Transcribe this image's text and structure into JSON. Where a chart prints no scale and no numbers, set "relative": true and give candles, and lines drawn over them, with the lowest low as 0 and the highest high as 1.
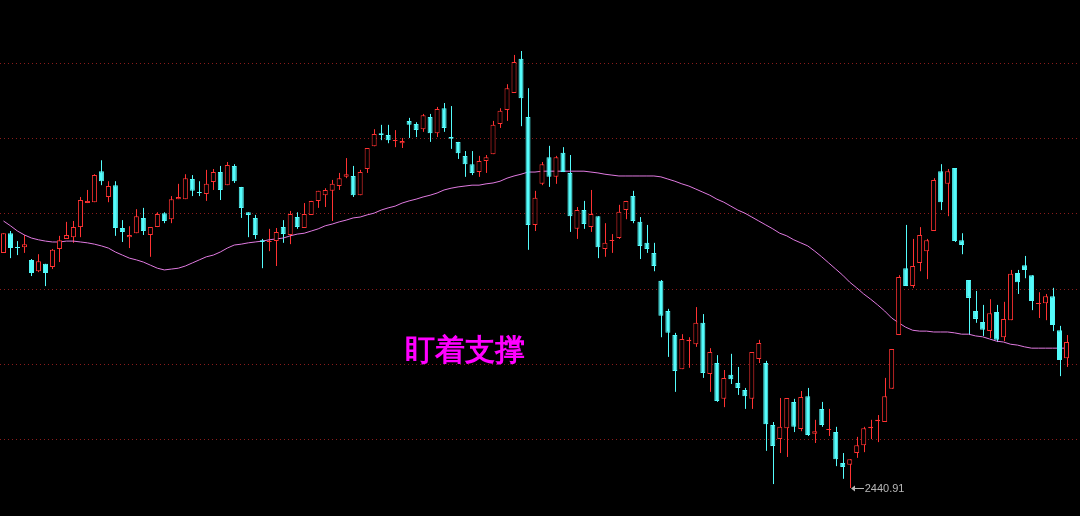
{
  "chart_data": {
    "type": "candlestick",
    "relative": true,
    "legend": false,
    "marker": "none",
    "ref_lines": [
      {
        "axis": "y",
        "value": 0.973,
        "color": "#8a1c1c",
        "line_style": "dotted"
      },
      {
        "axis": "y",
        "value": 0.801,
        "color": "#8a1c1c",
        "line_style": "dotted"
      },
      {
        "axis": "y",
        "value": 0.629,
        "color": "#8a1c1c",
        "line_style": "dotted"
      },
      {
        "axis": "y",
        "value": 0.455,
        "color": "#8a1c1c",
        "line_style": "dotted"
      },
      {
        "axis": "y",
        "value": 0.284,
        "color": "#8a1c1c",
        "line_style": "dotted"
      },
      {
        "axis": "y",
        "value": 0.112,
        "color": "#8a1c1c",
        "line_style": "dotted"
      }
    ],
    "annotations": [
      "盯着支撑",
      "2440.91"
    ],
    "categories": [
      null,
      null,
      null,
      null,
      null,
      null,
      null,
      null,
      null,
      null,
      null,
      null,
      null,
      null,
      null,
      null,
      null,
      null,
      null,
      null,
      null,
      null,
      null,
      null,
      null,
      null,
      null,
      null,
      null,
      null,
      null,
      null,
      null,
      null,
      null,
      null,
      null,
      null,
      null,
      null,
      null,
      null,
      null,
      null,
      null,
      null,
      null,
      null,
      null,
      null,
      null,
      null,
      null,
      null,
      null,
      null,
      null,
      null,
      null,
      null,
      null,
      null,
      null,
      null,
      null,
      null,
      null,
      null,
      null,
      null,
      null,
      null,
      null,
      null,
      null,
      null,
      null,
      null,
      null,
      null,
      null,
      null,
      null,
      null,
      null,
      null,
      null,
      null,
      null,
      null,
      null,
      null,
      null,
      null,
      null,
      null,
      null,
      null,
      null,
      null,
      null,
      null,
      null,
      null,
      null,
      null,
      null,
      null,
      null,
      null,
      null,
      null,
      null,
      null,
      null,
      null,
      null,
      null,
      null,
      null,
      null,
      null,
      null,
      null,
      null,
      null,
      null,
      null,
      null,
      null,
      null,
      null,
      null,
      null,
      null,
      null,
      null,
      null,
      null,
      null,
      null,
      null,
      null,
      null,
      null,
      null,
      null,
      null,
      null,
      null,
      null,
      null,
      null
    ],
    "series": [
      {
        "ohlc": [
          [
            0.538,
            0.583,
            0.538,
            0.583
          ],
          [
            0.583,
            0.588,
            0.526,
            0.549
          ],
          [
            0.551,
            0.565,
            0.533,
            0.549
          ],
          [
            0.551,
            0.579,
            0.538,
            0.558
          ],
          [
            0.522,
            0.524,
            0.485,
            0.492
          ],
          [
            0.496,
            0.535,
            0.494,
            0.519
          ],
          [
            0.513,
            0.513,
            0.462,
            0.492
          ],
          [
            0.506,
            0.547,
            0.501,
            0.545
          ],
          [
            0.547,
            0.577,
            0.517,
            0.567
          ],
          [
            0.57,
            0.609,
            0.57,
            0.579
          ],
          [
            0.574,
            0.611,
            0.561,
            0.597
          ],
          [
            0.597,
            0.666,
            0.574,
            0.659
          ],
          [
            0.652,
            0.682,
            0.652,
            0.657
          ],
          [
            0.654,
            0.718,
            0.654,
            0.716
          ],
          [
            0.725,
            0.75,
            0.693,
            0.702
          ],
          [
            0.666,
            0.702,
            0.654,
            0.691
          ],
          [
            0.693,
            0.702,
            0.577,
            0.595
          ],
          [
            0.595,
            0.613,
            0.563,
            0.586
          ],
          [
            0.574,
            0.599,
            0.549,
            0.579
          ],
          [
            0.583,
            0.638,
            0.583,
            0.622
          ],
          [
            0.618,
            0.641,
            0.579,
            0.588
          ],
          [
            0.579,
            0.597,
            0.529,
            0.597
          ],
          [
            0.597,
            0.631,
            0.597,
            0.627
          ],
          [
            0.629,
            0.631,
            0.606,
            0.611
          ],
          [
            0.615,
            0.668,
            0.606,
            0.661
          ],
          [
            0.661,
            0.696,
            0.661,
            0.666
          ],
          [
            0.661,
            0.718,
            0.661,
            0.709
          ],
          [
            0.707,
            0.716,
            0.668,
            0.68
          ],
          [
            0.677,
            0.702,
            0.668,
            0.675
          ],
          [
            0.673,
            0.728,
            0.657,
            0.696
          ],
          [
            0.7,
            0.73,
            0.682,
            0.723
          ],
          [
            0.723,
            0.737,
            0.659,
            0.682
          ],
          [
            0.693,
            0.746,
            0.693,
            0.739
          ],
          [
            0.737,
            0.741,
            0.698,
            0.702
          ],
          [
            0.689,
            0.689,
            0.618,
            0.641
          ],
          [
            0.631,
            0.631,
            0.574,
            0.625
          ],
          [
            0.618,
            0.625,
            0.57,
            0.579
          ],
          [
            0.567,
            0.57,
            0.503,
            0.563
          ],
          [
            0.563,
            0.593,
            0.542,
            0.565
          ],
          [
            0.565,
            0.595,
            0.508,
            0.586
          ],
          [
            0.597,
            0.613,
            0.561,
            0.581
          ],
          [
            0.579,
            0.634,
            0.558,
            0.627
          ],
          [
            0.62,
            0.631,
            0.593,
            0.597
          ],
          [
            0.595,
            0.652,
            0.595,
            0.627
          ],
          [
            0.625,
            0.657,
            0.625,
            0.657
          ],
          [
            0.657,
            0.68,
            0.641,
            0.68
          ],
          [
            0.67,
            0.686,
            0.643,
            0.682
          ],
          [
            0.68,
            0.705,
            0.611,
            0.696
          ],
          [
            0.691,
            0.721,
            0.682,
            0.709
          ],
          [
            0.712,
            0.755,
            0.709,
            0.718
          ],
          [
            0.714,
            0.737,
            0.666,
            0.67
          ],
          [
            0.67,
            0.728,
            0.67,
            0.723
          ],
          [
            0.73,
            0.778,
            0.721,
            0.778
          ],
          [
            0.782,
            0.821,
            0.782,
            0.81
          ],
          [
            0.812,
            0.831,
            0.796,
            0.808
          ],
          [
            0.808,
            0.831,
            0.789,
            0.796
          ],
          [
            0.794,
            0.819,
            0.78,
            0.796
          ],
          [
            0.789,
            0.801,
            0.778,
            0.794
          ],
          [
            0.84,
            0.847,
            0.801,
            0.831
          ],
          [
            0.833,
            0.837,
            0.803,
            0.819
          ],
          [
            0.821,
            0.856,
            0.815,
            0.853
          ],
          [
            0.849,
            0.856,
            0.792,
            0.812
          ],
          [
            0.812,
            0.872,
            0.803,
            0.867
          ],
          [
            0.869,
            0.881,
            0.815,
            0.824
          ],
          [
            0.803,
            0.874,
            0.776,
            0.799
          ],
          [
            0.792,
            0.792,
            0.753,
            0.766
          ],
          [
            0.76,
            0.771,
            0.712,
            0.741
          ],
          [
            0.741,
            0.771,
            0.716,
            0.721
          ],
          [
            0.723,
            0.76,
            0.712,
            0.748
          ],
          [
            0.748,
            0.762,
            0.721,
            0.757
          ],
          [
            0.764,
            0.84,
            0.764,
            0.831
          ],
          [
            0.833,
            0.869,
            0.824,
            0.863
          ],
          [
            0.865,
            0.924,
            0.84,
            0.915
          ],
          [
            0.904,
            0.991,
            0.904,
            0.975
          ],
          [
            0.982,
            1,
            0.828,
            0.892
          ],
          [
            0.849,
            0.915,
            0.545,
            0.602
          ],
          [
            0.602,
            0.68,
            0.588,
            0.664
          ],
          [
            0.696,
            0.746,
            0.693,
            0.741
          ],
          [
            0.757,
            0.783,
            0.689,
            0.712
          ],
          [
            0.712,
            0.76,
            0.696,
            0.757
          ],
          [
            0.767,
            0.78,
            0.723,
            0.723
          ],
          [
            0.721,
            0.762,
            0.586,
            0.622
          ],
          [
            0.593,
            0.643,
            0.57,
            0.636
          ],
          [
            0.636,
            0.657,
            0.593,
            0.604
          ],
          [
            0.597,
            0.682,
            0.586,
            0.627
          ],
          [
            0.622,
            0.622,
            0.526,
            0.551
          ],
          [
            0.547,
            0.606,
            0.529,
            0.561
          ],
          [
            0.565,
            0.581,
            0.538,
            0.567
          ],
          [
            0.572,
            0.648,
            0.57,
            0.632
          ],
          [
            0.636,
            0.657,
            0.615,
            0.657
          ],
          [
            0.668,
            0.68,
            0.606,
            0.611
          ],
          [
            0.609,
            0.62,
            0.524,
            0.554
          ],
          [
            0.561,
            0.602,
            0.538,
            0.547
          ],
          [
            0.538,
            0.561,
            0.496,
            0.508
          ],
          [
            0.474,
            0.476,
            0.345,
            0.394
          ],
          [
            0.405,
            0.41,
            0.3,
            0.355
          ],
          [
            0.35,
            0.355,
            0.22,
            0.268
          ],
          [
            0.272,
            0.352,
            0.272,
            0.341
          ],
          [
            0.336,
            0.345,
            0.275,
            0.339
          ],
          [
            0.329,
            0.414,
            0.323,
            0.378
          ],
          [
            0.378,
            0.398,
            0.252,
            0.263
          ],
          [
            0.261,
            0.32,
            0.22,
            0.311
          ],
          [
            0.286,
            0.304,
            0.197,
            0.199
          ],
          [
            0.204,
            0.27,
            0.185,
            0.252
          ],
          [
            0.259,
            0.307,
            0.238,
            0.249
          ],
          [
            0.24,
            0.277,
            0.213,
            0.229
          ],
          [
            0.224,
            0.229,
            0.181,
            0.21
          ],
          [
            0.204,
            0.311,
            0.181,
            0.311
          ],
          [
            0.295,
            0.339,
            0.286,
            0.332
          ],
          [
            0.286,
            0.291,
            0.085,
            0.146
          ],
          [
            0.144,
            0.151,
            0.009,
            0.096
          ],
          [
            0.112,
            0.206,
            0.08,
            0.14
          ],
          [
            0.137,
            0.206,
            0.071,
            0.206
          ],
          [
            0.197,
            0.204,
            0.128,
            0.14
          ],
          [
            0.135,
            0.222,
            0.13,
            0.208
          ],
          [
            0.21,
            0.229,
            0.119,
            0.121
          ],
          [
            0.124,
            0.156,
            0.103,
            0.13
          ],
          [
            0.181,
            0.197,
            0.14,
            0.144
          ],
          [
            0.133,
            0.181,
            0.119,
            0.135
          ],
          [
            0.128,
            0.14,
            0.05,
            0.066
          ],
          [
            0.057,
            0.08,
            0.021,
            0.048
          ],
          [
            0.053,
            0.066,
            0,
            0.066
          ],
          [
            0.08,
            0.117,
            0.069,
            0.098
          ],
          [
            0.098,
            0.14,
            0.082,
            0.137
          ],
          [
            0.137,
            0.156,
            0.112,
            0.14
          ],
          [
            0.153,
            0.167,
            0.105,
            0.156
          ],
          [
            0.151,
            0.252,
            0.151,
            0.21
          ],
          [
            0.227,
            0.318,
            0.227,
            0.318
          ],
          [
            0.35,
            0.487,
            0.35,
            0.483
          ],
          [
            0.503,
            0.602,
            0.462,
            0.462
          ],
          [
            0.462,
            0.57,
            0.458,
            0.508
          ],
          [
            0.515,
            0.597,
            0.496,
            0.579
          ],
          [
            0.542,
            0.57,
            0.478,
            0.567
          ],
          [
            0.588,
            0.709,
            0.588,
            0.705
          ],
          [
            0.725,
            0.741,
            0.636,
            0.654
          ],
          [
            0.696,
            0.73,
            0.622,
            0.725
          ],
          [
            0.732,
            0.732,
            0.563,
            0.565
          ],
          [
            0.567,
            0.583,
            0.535,
            0.556
          ],
          [
            0.476,
            0.476,
            0.35,
            0.435
          ],
          [
            0.405,
            0.451,
            0.378,
            0.387
          ],
          [
            0.38,
            0.419,
            0.348,
            0.362
          ],
          [
            0.359,
            0.432,
            0.343,
            0.4
          ],
          [
            0.403,
            0.419,
            0.334,
            0.339
          ],
          [
            0.345,
            0.426,
            0.336,
            0.387
          ],
          [
            0.384,
            0.499,
            0.384,
            0.49
          ],
          [
            0.492,
            0.499,
            0.444,
            0.471
          ],
          [
            0.51,
            0.531,
            0.48,
            0.499
          ],
          [
            0.487,
            0.487,
            0.407,
            0.428
          ],
          [
            0.421,
            0.448,
            0.389,
            0.423
          ],
          [
            0.423,
            0.444,
            0.384,
            0.439
          ],
          [
            0.439,
            0.458,
            0.359,
            0.373
          ],
          [
            0.361,
            0.371,
            0.256,
            0.293
          ],
          [
            0.297,
            0.35,
            0.277,
            0.334
          ]
        ],
        "colors": [
          "#ff3232",
          "#54fcfc",
          "#54fcfc",
          "#ff3232",
          "#54fcfc",
          "#ff3232",
          "#54fcfc",
          "#ff3232",
          "#ff3232",
          "#ff3232",
          "#ff3232",
          "#ff3232",
          "#ff3232",
          "#ff3232",
          "#54fcfc",
          "#ff3232",
          "#54fcfc",
          "#54fcfc",
          "#ff3232",
          "#ff3232",
          "#54fcfc",
          "#ff3232",
          "#ff3232",
          "#54fcfc",
          "#ff3232",
          "#ff3232",
          "#ff3232",
          "#54fcfc",
          "#54fcfc",
          "#ff3232",
          "#ff3232",
          "#54fcfc",
          "#ff3232",
          "#54fcfc",
          "#54fcfc",
          "#54fcfc",
          "#54fcfc",
          "#54fcfc",
          "#ff3232",
          "#ff3232",
          "#54fcfc",
          "#ff3232",
          "#54fcfc",
          "#ff3232",
          "#ff3232",
          "#ff3232",
          "#ff3232",
          "#ff3232",
          "#ff3232",
          "#ff3232",
          "#54fcfc",
          "#ff3232",
          "#ff3232",
          "#ff3232",
          "#54fcfc",
          "#54fcfc",
          "#ff3232",
          "#ff3232",
          "#54fcfc",
          "#54fcfc",
          "#ff3232",
          "#54fcfc",
          "#ff3232",
          "#54fcfc",
          "#54fcfc",
          "#54fcfc",
          "#54fcfc",
          "#54fcfc",
          "#ff3232",
          "#ff3232",
          "#ff3232",
          "#ff3232",
          "#ff3232",
          "#ff3232",
          "#54fcfc",
          "#54fcfc",
          "#ff3232",
          "#ff3232",
          "#54fcfc",
          "#ff3232",
          "#54fcfc",
          "#54fcfc",
          "#ff3232",
          "#54fcfc",
          "#ff3232",
          "#54fcfc",
          "#ff3232",
          "#ff3232",
          "#ff3232",
          "#ff3232",
          "#54fcfc",
          "#54fcfc",
          "#54fcfc",
          "#54fcfc",
          "#54fcfc",
          "#54fcfc",
          "#54fcfc",
          "#ff3232",
          "#ff3232",
          "#ff3232",
          "#54fcfc",
          "#ff3232",
          "#54fcfc",
          "#ff3232",
          "#54fcfc",
          "#54fcfc",
          "#54fcfc",
          "#ff3232",
          "#ff3232",
          "#54fcfc",
          "#54fcfc",
          "#ff3232",
          "#ff3232",
          "#54fcfc",
          "#ff3232",
          "#54fcfc",
          "#ff3232",
          "#54fcfc",
          "#ff3232",
          "#54fcfc",
          "#54fcfc",
          "#ff3232",
          "#ff3232",
          "#ff3232",
          "#ff3232",
          "#ff3232",
          "#ff3232",
          "#ff3232",
          "#ff3232",
          "#54fcfc",
          "#ff3232",
          "#ff3232",
          "#ff3232",
          "#ff3232",
          "#54fcfc",
          "#ff3232",
          "#54fcfc",
          "#54fcfc",
          "#54fcfc",
          "#54fcfc",
          "#54fcfc",
          "#ff3232",
          "#54fcfc",
          "#ff3232",
          "#ff3232",
          "#54fcfc",
          "#54fcfc",
          "#54fcfc",
          "#ff3232",
          "#ff3232",
          "#54fcfc",
          "#54fcfc",
          "#ff3232"
        ]
      },
      {
        "type": "line",
        "color": "#e07ae0",
        "values": [
          0.611,
          0.6,
          0.588,
          0.579,
          0.572,
          0.568,
          0.565,
          0.563,
          0.563,
          0.565,
          0.565,
          0.563,
          0.561,
          0.558,
          0.554,
          0.549,
          0.54,
          0.533,
          0.526,
          0.522,
          0.517,
          0.51,
          0.503,
          0.499,
          0.501,
          0.503,
          0.508,
          0.515,
          0.522,
          0.529,
          0.533,
          0.54,
          0.549,
          0.556,
          0.558,
          0.561,
          0.563,
          0.565,
          0.568,
          0.57,
          0.572,
          0.577,
          0.581,
          0.583,
          0.588,
          0.593,
          0.6,
          0.604,
          0.609,
          0.613,
          0.618,
          0.62,
          0.625,
          0.629,
          0.636,
          0.641,
          0.645,
          0.652,
          0.657,
          0.661,
          0.666,
          0.67,
          0.675,
          0.682,
          0.686,
          0.689,
          0.691,
          0.693,
          0.693,
          0.696,
          0.698,
          0.702,
          0.709,
          0.714,
          0.718,
          0.723,
          0.723,
          0.725,
          0.725,
          0.725,
          0.725,
          0.725,
          0.725,
          0.725,
          0.723,
          0.721,
          0.718,
          0.716,
          0.714,
          0.714,
          0.714,
          0.714,
          0.714,
          0.714,
          0.712,
          0.707,
          0.702,
          0.696,
          0.691,
          0.684,
          0.677,
          0.67,
          0.661,
          0.654,
          0.645,
          0.636,
          0.629,
          0.62,
          0.611,
          0.602,
          0.593,
          0.583,
          0.577,
          0.568,
          0.561,
          0.554,
          0.542,
          0.529,
          0.515,
          0.501,
          0.487,
          0.471,
          0.458,
          0.444,
          0.432,
          0.419,
          0.405,
          0.389,
          0.378,
          0.368,
          0.361,
          0.359,
          0.359,
          0.357,
          0.357,
          0.357,
          0.355,
          0.352,
          0.352,
          0.348,
          0.346,
          0.341,
          0.336,
          0.334,
          0.329,
          0.327,
          0.323,
          0.32,
          0.32,
          0.32,
          0.32,
          0.32,
          0.32
        ]
      }
    ]
  }
}
